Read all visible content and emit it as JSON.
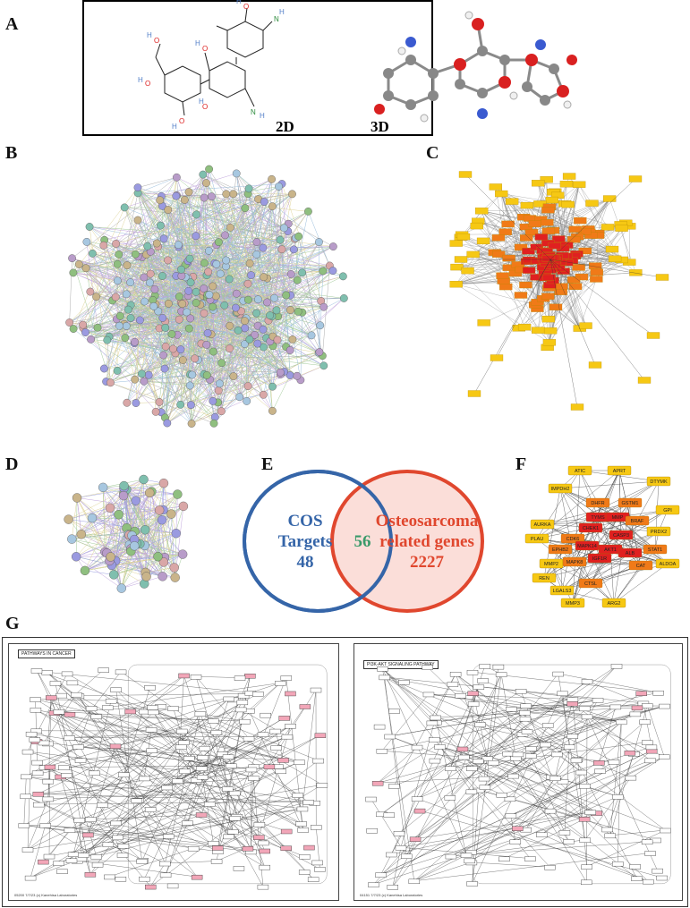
{
  "panels": {
    "A": {
      "label": "A",
      "view_2d": "2D",
      "view_3d": "3D"
    },
    "B": {
      "label": "B"
    },
    "C": {
      "label": "C"
    },
    "D": {
      "label": "D"
    },
    "E": {
      "label": "E",
      "left_set": {
        "line1": "COS",
        "line2": "Targets",
        "count": "48",
        "color": "#3565a8"
      },
      "right_set": {
        "line1": "Osteosarcoma",
        "line2": "related genes",
        "count": "2227",
        "color": "#e0472e"
      },
      "overlap": {
        "count": "56",
        "color": "#3a9a6a"
      }
    },
    "F": {
      "label": "F",
      "nodes": [
        "ATIC",
        "APRT",
        "DTYMK",
        "IMPDH2",
        "DHFR",
        "GSTM1",
        "GPI",
        "TYMS",
        "MMP",
        "AURKA",
        "CHEK1",
        "PRDX2",
        "PLAU",
        "CDK6",
        "EPHB2",
        "MAPK14",
        "AKT1",
        "ALB",
        "STAT1",
        "ALDOA",
        "MMP2",
        "IGF1R",
        "CAT",
        "REN",
        "LGALS3",
        "CTSL",
        "MMP3",
        "ARG2",
        "MAPK8",
        "CASP3",
        "BRAF"
      ]
    },
    "G": {
      "label": "G",
      "left_map_title": "PATHWAYS IN CANCER",
      "right_map_title": "PI3K-AKT SIGNALING PATHWAY",
      "right_footer": "04151 7/7/23 (c) Kanehisa Laboratories",
      "left_footer": "05200 7/7/23 (c) Kanehisa Laboratories"
    }
  },
  "colors": {
    "string_node_palette": [
      "#8fbf7f",
      "#9a9ae0",
      "#c9b48a",
      "#a7c7e0",
      "#b89cc9",
      "#7fbfae",
      "#d9a7a7"
    ],
    "cytoscape_high": "#e02020",
    "cytoscape_mid": "#f07a18",
    "cytoscape_low": "#f6c814",
    "kegg_highlight": "#f2a6b8"
  }
}
